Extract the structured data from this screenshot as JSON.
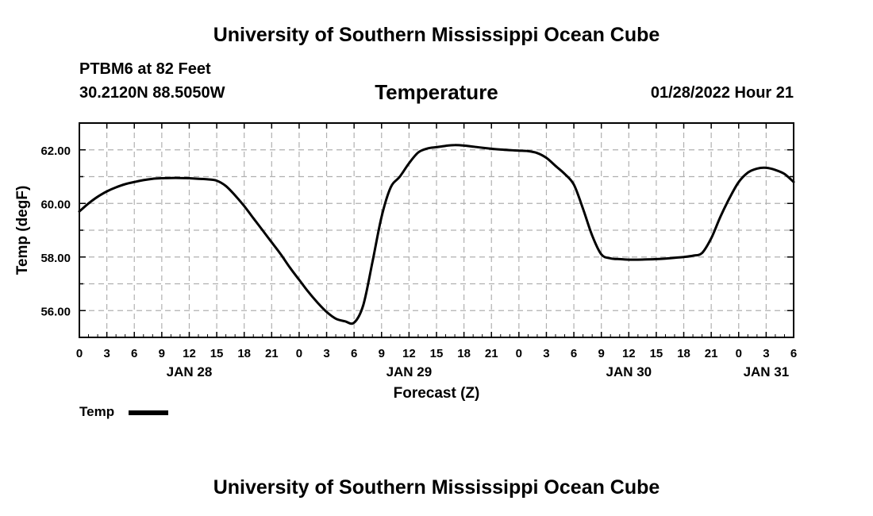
{
  "header": {
    "title": "University of Southern Mississippi Ocean Cube",
    "station": "PTBM6 at 82 Feet",
    "coordinates": "30.2120N  88.5050W",
    "variable": "Temperature",
    "datetime": "01/28/2022 Hour 21"
  },
  "footer": {
    "title": "University of Southern Mississippi Ocean Cube"
  },
  "legend": {
    "label": "Temp",
    "color": "#000000"
  },
  "chart_data": {
    "type": "line",
    "title": "Temperature",
    "xlabel": "Forecast (Z)",
    "ylabel": "Temp (degF)",
    "xlim": [
      0,
      78
    ],
    "ylim": [
      55,
      63
    ],
    "grid": true,
    "x_tick_labels": [
      "0",
      "3",
      "6",
      "9",
      "12",
      "15",
      "18",
      "21",
      "0",
      "3",
      "6",
      "9",
      "12",
      "15",
      "18",
      "21",
      "0",
      "3",
      "6",
      "9",
      "12",
      "15",
      "18",
      "21",
      "0",
      "3",
      "6"
    ],
    "date_labels": [
      {
        "label": "JAN 28",
        "hour": 12
      },
      {
        "label": "JAN 29",
        "hour": 36
      },
      {
        "label": "JAN 30",
        "hour": 60
      },
      {
        "label": "JAN 31",
        "hour": 75
      }
    ],
    "y_ticks": [
      56,
      58,
      60,
      62
    ],
    "y_tick_labels": [
      "56.00",
      "58.00",
      "60.00",
      "62.00"
    ],
    "series": [
      {
        "name": "Temp",
        "color": "#000000",
        "x": [
          0,
          1,
          2,
          3,
          4,
          5,
          6,
          7,
          8,
          9,
          10,
          11,
          12,
          13,
          14,
          15,
          16,
          17,
          18,
          19,
          20,
          21,
          22,
          23,
          24,
          25,
          26,
          27,
          28,
          29,
          30,
          31,
          32,
          33,
          34,
          35,
          36,
          37,
          38,
          39,
          40,
          41,
          42,
          43,
          44,
          45,
          46,
          47,
          48,
          49,
          50,
          51,
          52,
          53,
          54,
          55,
          56,
          57,
          58,
          59,
          60,
          61,
          62,
          63,
          64,
          65,
          66,
          67,
          68,
          69,
          70,
          71,
          72,
          73,
          74,
          75,
          76,
          77,
          78
        ],
        "values": [
          59.7,
          60.0,
          60.25,
          60.45,
          60.6,
          60.72,
          60.8,
          60.87,
          60.92,
          60.94,
          60.95,
          60.95,
          60.94,
          60.92,
          60.9,
          60.85,
          60.65,
          60.3,
          59.9,
          59.45,
          59.0,
          58.55,
          58.1,
          57.6,
          57.15,
          56.7,
          56.3,
          55.95,
          55.7,
          55.6,
          55.55,
          56.2,
          57.8,
          59.5,
          60.6,
          61.0,
          61.5,
          61.9,
          62.05,
          62.1,
          62.15,
          62.18,
          62.16,
          62.12,
          62.08,
          62.04,
          62.01,
          61.99,
          61.97,
          61.95,
          61.88,
          61.7,
          61.4,
          61.1,
          60.7,
          59.8,
          58.8,
          58.1,
          57.95,
          57.92,
          57.9,
          57.9,
          57.91,
          57.92,
          57.94,
          57.97,
          58.0,
          58.05,
          58.15,
          58.7,
          59.5,
          60.2,
          60.8,
          61.15,
          61.3,
          61.33,
          61.25,
          61.1,
          60.8
        ]
      }
    ]
  }
}
